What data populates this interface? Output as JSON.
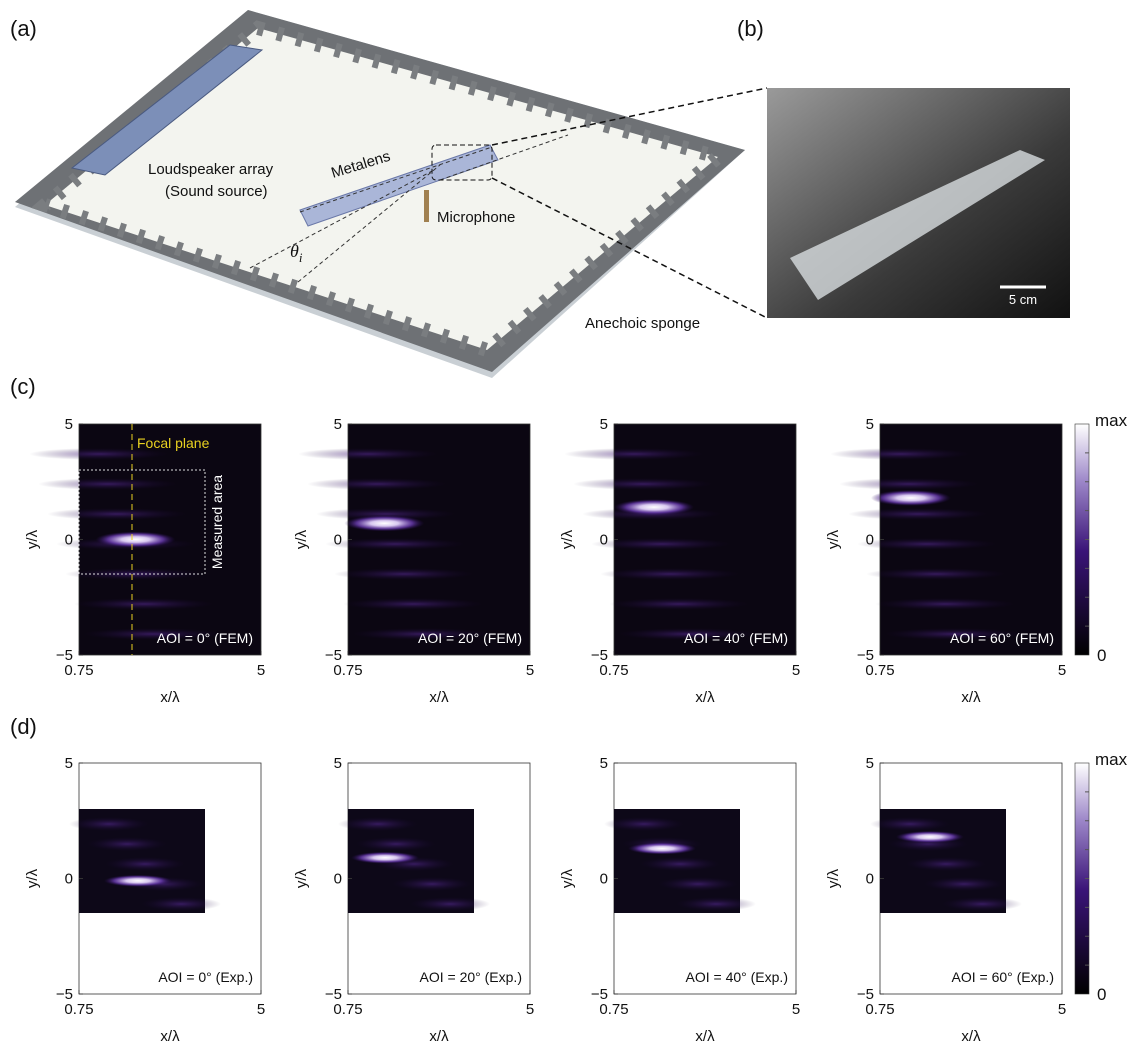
{
  "panel_a": {
    "label": "(a)",
    "source": [
      "Loudspeaker array",
      "(Sound source)"
    ],
    "metalens": "Metalens",
    "microphone": "Microphone",
    "angle": "θ",
    "angle_sub": "i",
    "sponge": "Anechoic sponge"
  },
  "panel_b": {
    "label": "(b)",
    "scale_bar": "5 cm"
  },
  "axes": {
    "xlabel": "x/λ",
    "ylabel": "y/λ",
    "xlim": [
      0.75,
      5
    ],
    "ylim": [
      -5,
      5
    ],
    "xticks": [
      0.75,
      5
    ],
    "yticks": [
      {
        "value": -5,
        "label": "−5"
      },
      0,
      5
    ]
  },
  "colorbar": {
    "top": "max",
    "bottom": 0
  },
  "panel_c": {
    "label": "(c)",
    "focal_plane": "Focal plane",
    "measured_area": "Measured area",
    "plots": [
      {
        "annotation": "AOI = 0° (FEM)"
      },
      {
        "annotation": "AOI = 20° (FEM)"
      },
      {
        "annotation": "AOI = 40° (FEM)"
      },
      {
        "annotation": "AOI = 60° (FEM)"
      }
    ]
  },
  "panel_d": {
    "label": "(d)",
    "plots": [
      {
        "annotation": "AOI = 0° (Exp.)"
      },
      {
        "annotation": "AOI = 20° (Exp.)"
      },
      {
        "annotation": "AOI = 40° (Exp.)"
      },
      {
        "annotation": "AOI = 60° (Exp.)"
      }
    ]
  }
}
